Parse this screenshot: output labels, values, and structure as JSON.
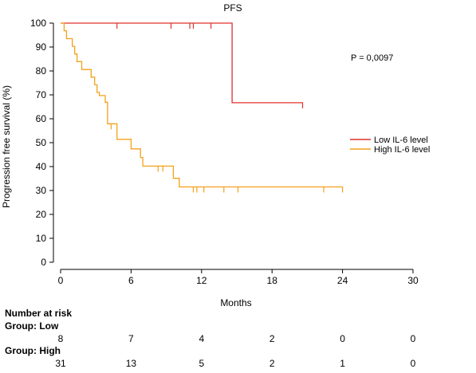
{
  "chart_data": {
    "type": "line",
    "title": "PFS",
    "xlabel": "Months",
    "ylabel": "Progression free survival (%)",
    "xlim": [
      0,
      30
    ],
    "ylim": [
      0,
      100
    ],
    "x_ticks": [
      "0",
      "6",
      "12",
      "18",
      "24",
      "30"
    ],
    "y_ticks": [
      "0",
      "10",
      "20",
      "30",
      "40",
      "50",
      "60",
      "70",
      "80",
      "90",
      "100"
    ],
    "annotation": "P = 0,0097",
    "legend_position": "right",
    "series": [
      {
        "name": "Low IL-6 level",
        "color": "#e0312b",
        "steps": [
          [
            0,
            100
          ],
          [
            14.6,
            100
          ],
          [
            14.6,
            66.7
          ],
          [
            20.6,
            66.7
          ]
        ],
        "censored": [
          4.8,
          9.4,
          11.0,
          11.3,
          12.8,
          20.6
        ]
      },
      {
        "name": "High IL-6 level",
        "color": "#f4a11c",
        "steps": [
          [
            0,
            100
          ],
          [
            0.3,
            100
          ],
          [
            0.3,
            96.8
          ],
          [
            0.5,
            96.8
          ],
          [
            0.5,
            93.5
          ],
          [
            1.0,
            93.5
          ],
          [
            1.0,
            90.3
          ],
          [
            1.2,
            90.3
          ],
          [
            1.2,
            87.1
          ],
          [
            1.4,
            87.1
          ],
          [
            1.4,
            83.9
          ],
          [
            1.8,
            83.9
          ],
          [
            1.8,
            80.6
          ],
          [
            2.6,
            80.6
          ],
          [
            2.6,
            77.4
          ],
          [
            2.9,
            77.4
          ],
          [
            2.9,
            74.2
          ],
          [
            3.1,
            74.2
          ],
          [
            3.1,
            71.0
          ],
          [
            3.3,
            71.0
          ],
          [
            3.3,
            69.7
          ],
          [
            3.8,
            69.7
          ],
          [
            3.8,
            66.9
          ],
          [
            4.0,
            66.9
          ],
          [
            4.0,
            57.9
          ],
          [
            4.8,
            57.9
          ],
          [
            4.8,
            51.4
          ],
          [
            6.0,
            51.4
          ],
          [
            6.0,
            47.4
          ],
          [
            6.8,
            47.4
          ],
          [
            6.8,
            43.8
          ],
          [
            7.0,
            43.8
          ],
          [
            7.0,
            40.2
          ],
          [
            9.6,
            40.2
          ],
          [
            9.6,
            35.1
          ],
          [
            10.1,
            35.1
          ],
          [
            10.1,
            31.5
          ],
          [
            24.0,
            31.5
          ]
        ],
        "censored": [
          4.3,
          8.3,
          8.7,
          11.3,
          11.6,
          12.2,
          13.9,
          15.1,
          22.4,
          24.0
        ]
      }
    ]
  },
  "risk_table": {
    "header": "Number at risk",
    "groups": [
      {
        "label": "Group: Low",
        "values": [
          "8",
          "7",
          "4",
          "2",
          "0",
          "0"
        ]
      },
      {
        "label": "Group: High",
        "values": [
          "31",
          "13",
          "5",
          "2",
          "1",
          "0"
        ]
      }
    ]
  }
}
